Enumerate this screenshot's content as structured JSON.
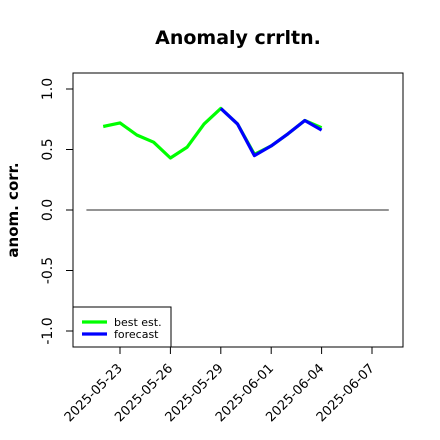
{
  "chart_data": {
    "type": "line",
    "title": "Anomaly crrltn.",
    "ylabel": "anom. corr.",
    "xlabel": "",
    "ylim": [
      -1.05,
      1.05
    ],
    "yticks": [
      -1.0,
      -0.5,
      0.0,
      0.5,
      1.0
    ],
    "ytick_labels": [
      "-1.0",
      "-0.5",
      "0.0",
      "0.5",
      "1.0"
    ],
    "xlim": [
      "2025-05-21",
      "2025-06-08"
    ],
    "xticks": [
      "2025-05-23",
      "2025-05-26",
      "2025-05-29",
      "2025-06-01",
      "2025-06-04",
      "2025-06-07"
    ],
    "xtick_labels": [
      "2025-05-23",
      "2025-05-26",
      "2025-05-29",
      "2025-06-01",
      "2025-06-04",
      "2025-06-07"
    ],
    "highlighted_tick": "2025-05-29",
    "highlight_color": "#228b22",
    "reference_line": 0.0,
    "grid": false,
    "legend_position": "bottom-left",
    "series": [
      {
        "name": "best est.",
        "color": "#00ff00",
        "x": [
          "2025-05-22",
          "2025-05-23",
          "2025-05-24",
          "2025-05-25",
          "2025-05-26",
          "2025-05-27",
          "2025-05-28",
          "2025-05-29",
          "2025-05-30",
          "2025-05-31",
          "2025-06-01",
          "2025-06-02",
          "2025-06-03",
          "2025-06-04"
        ],
        "values": [
          0.69,
          0.72,
          0.62,
          0.56,
          0.43,
          0.52,
          0.71,
          0.84,
          0.71,
          0.46,
          0.53,
          0.63,
          0.74,
          0.68
        ]
      },
      {
        "name": "forecast",
        "color": "#0000ff",
        "x": [
          "2025-05-29",
          "2025-05-30",
          "2025-05-31",
          "2025-06-01",
          "2025-06-02",
          "2025-06-03",
          "2025-06-04"
        ],
        "values": [
          0.84,
          0.71,
          0.45,
          0.53,
          0.63,
          0.74,
          0.66
        ]
      }
    ]
  }
}
